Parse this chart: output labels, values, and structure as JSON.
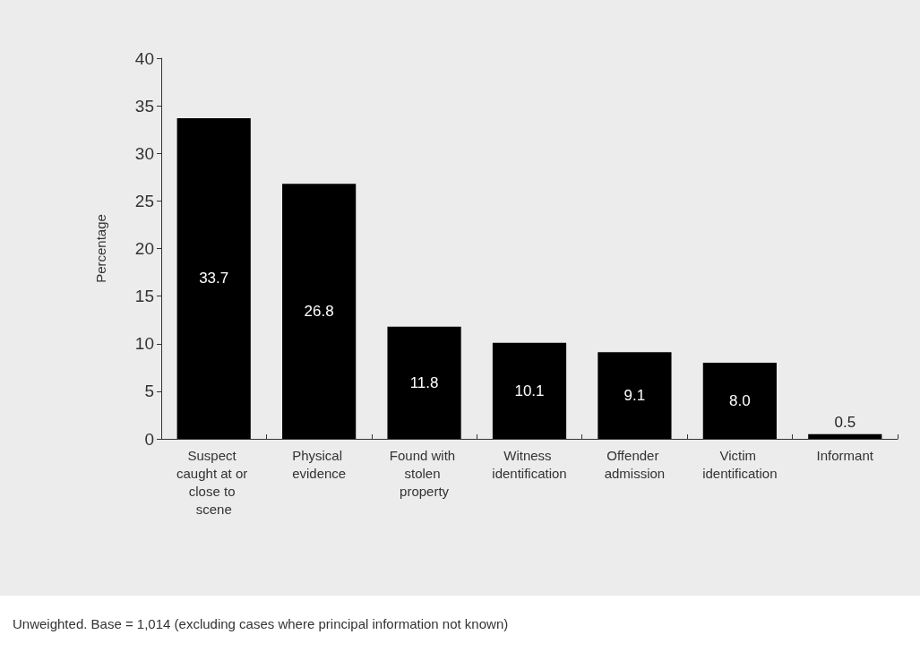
{
  "chart_data": {
    "type": "bar",
    "ylabel": "Percentage",
    "categories": [
      "Suspect caught at or close to scene",
      "Physical evidence",
      "Found with stolen property",
      "Witness identification",
      "Offender admission",
      "Victim identification",
      "Informant"
    ],
    "values": [
      33.7,
      26.8,
      11.8,
      10.1,
      9.1,
      8.0,
      0.5
    ],
    "color": "#000000",
    "value_labels": [
      "33.7",
      "26.8",
      "11.8",
      "10.1",
      "9.1",
      "8.0",
      "0.5"
    ],
    "ylim": [
      0,
      40
    ],
    "yticks": [
      0,
      5,
      10,
      15,
      20,
      25,
      30,
      35,
      40
    ],
    "grid": false,
    "annotations": [
      "Unweighted. Base = 1,014 (excluding cases where principal information not known)"
    ]
  }
}
